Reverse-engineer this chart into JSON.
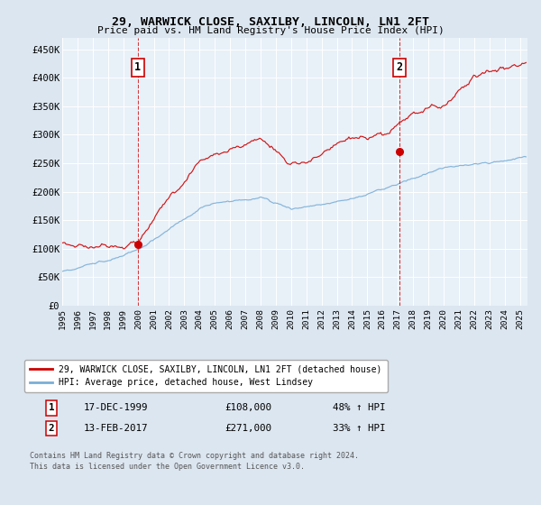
{
  "title": "29, WARWICK CLOSE, SAXILBY, LINCOLN, LN1 2FT",
  "subtitle": "Price paid vs. HM Land Registry's House Price Index (HPI)",
  "background_color": "#dce6f0",
  "plot_background": "#e8f0f8",
  "ylim": [
    0,
    470000
  ],
  "yticks": [
    0,
    50000,
    100000,
    150000,
    200000,
    250000,
    300000,
    350000,
    400000,
    450000
  ],
  "ytick_labels": [
    "£0",
    "£50K",
    "£100K",
    "£150K",
    "£200K",
    "£250K",
    "£300K",
    "£350K",
    "£400K",
    "£450K"
  ],
  "sale1_date_x": 1999.96,
  "sale1_price": 108000,
  "sale1_label": "1",
  "sale1_text": "17-DEC-1999",
  "sale1_amount": "£108,000",
  "sale1_hpi": "48% ↑ HPI",
  "sale2_date_x": 2017.12,
  "sale2_price": 271000,
  "sale2_label": "2",
  "sale2_text": "13-FEB-2017",
  "sale2_amount": "£271,000",
  "sale2_hpi": "33% ↑ HPI",
  "red_line_color": "#cc0000",
  "blue_line_color": "#7aaed6",
  "legend_label_red": "29, WARWICK CLOSE, SAXILBY, LINCOLN, LN1 2FT (detached house)",
  "legend_label_blue": "HPI: Average price, detached house, West Lindsey",
  "footer_line1": "Contains HM Land Registry data © Crown copyright and database right 2024.",
  "footer_line2": "This data is licensed under the Open Government Licence v3.0.",
  "xmin": 1995.0,
  "xmax": 2025.5,
  "years": [
    1995,
    1996,
    1997,
    1998,
    1999,
    2000,
    2001,
    2002,
    2003,
    2004,
    2005,
    2006,
    2007,
    2008,
    2009,
    2010,
    2011,
    2012,
    2013,
    2014,
    2015,
    2016,
    2017,
    2018,
    2019,
    2020,
    2021,
    2022,
    2023,
    2024,
    2025
  ]
}
